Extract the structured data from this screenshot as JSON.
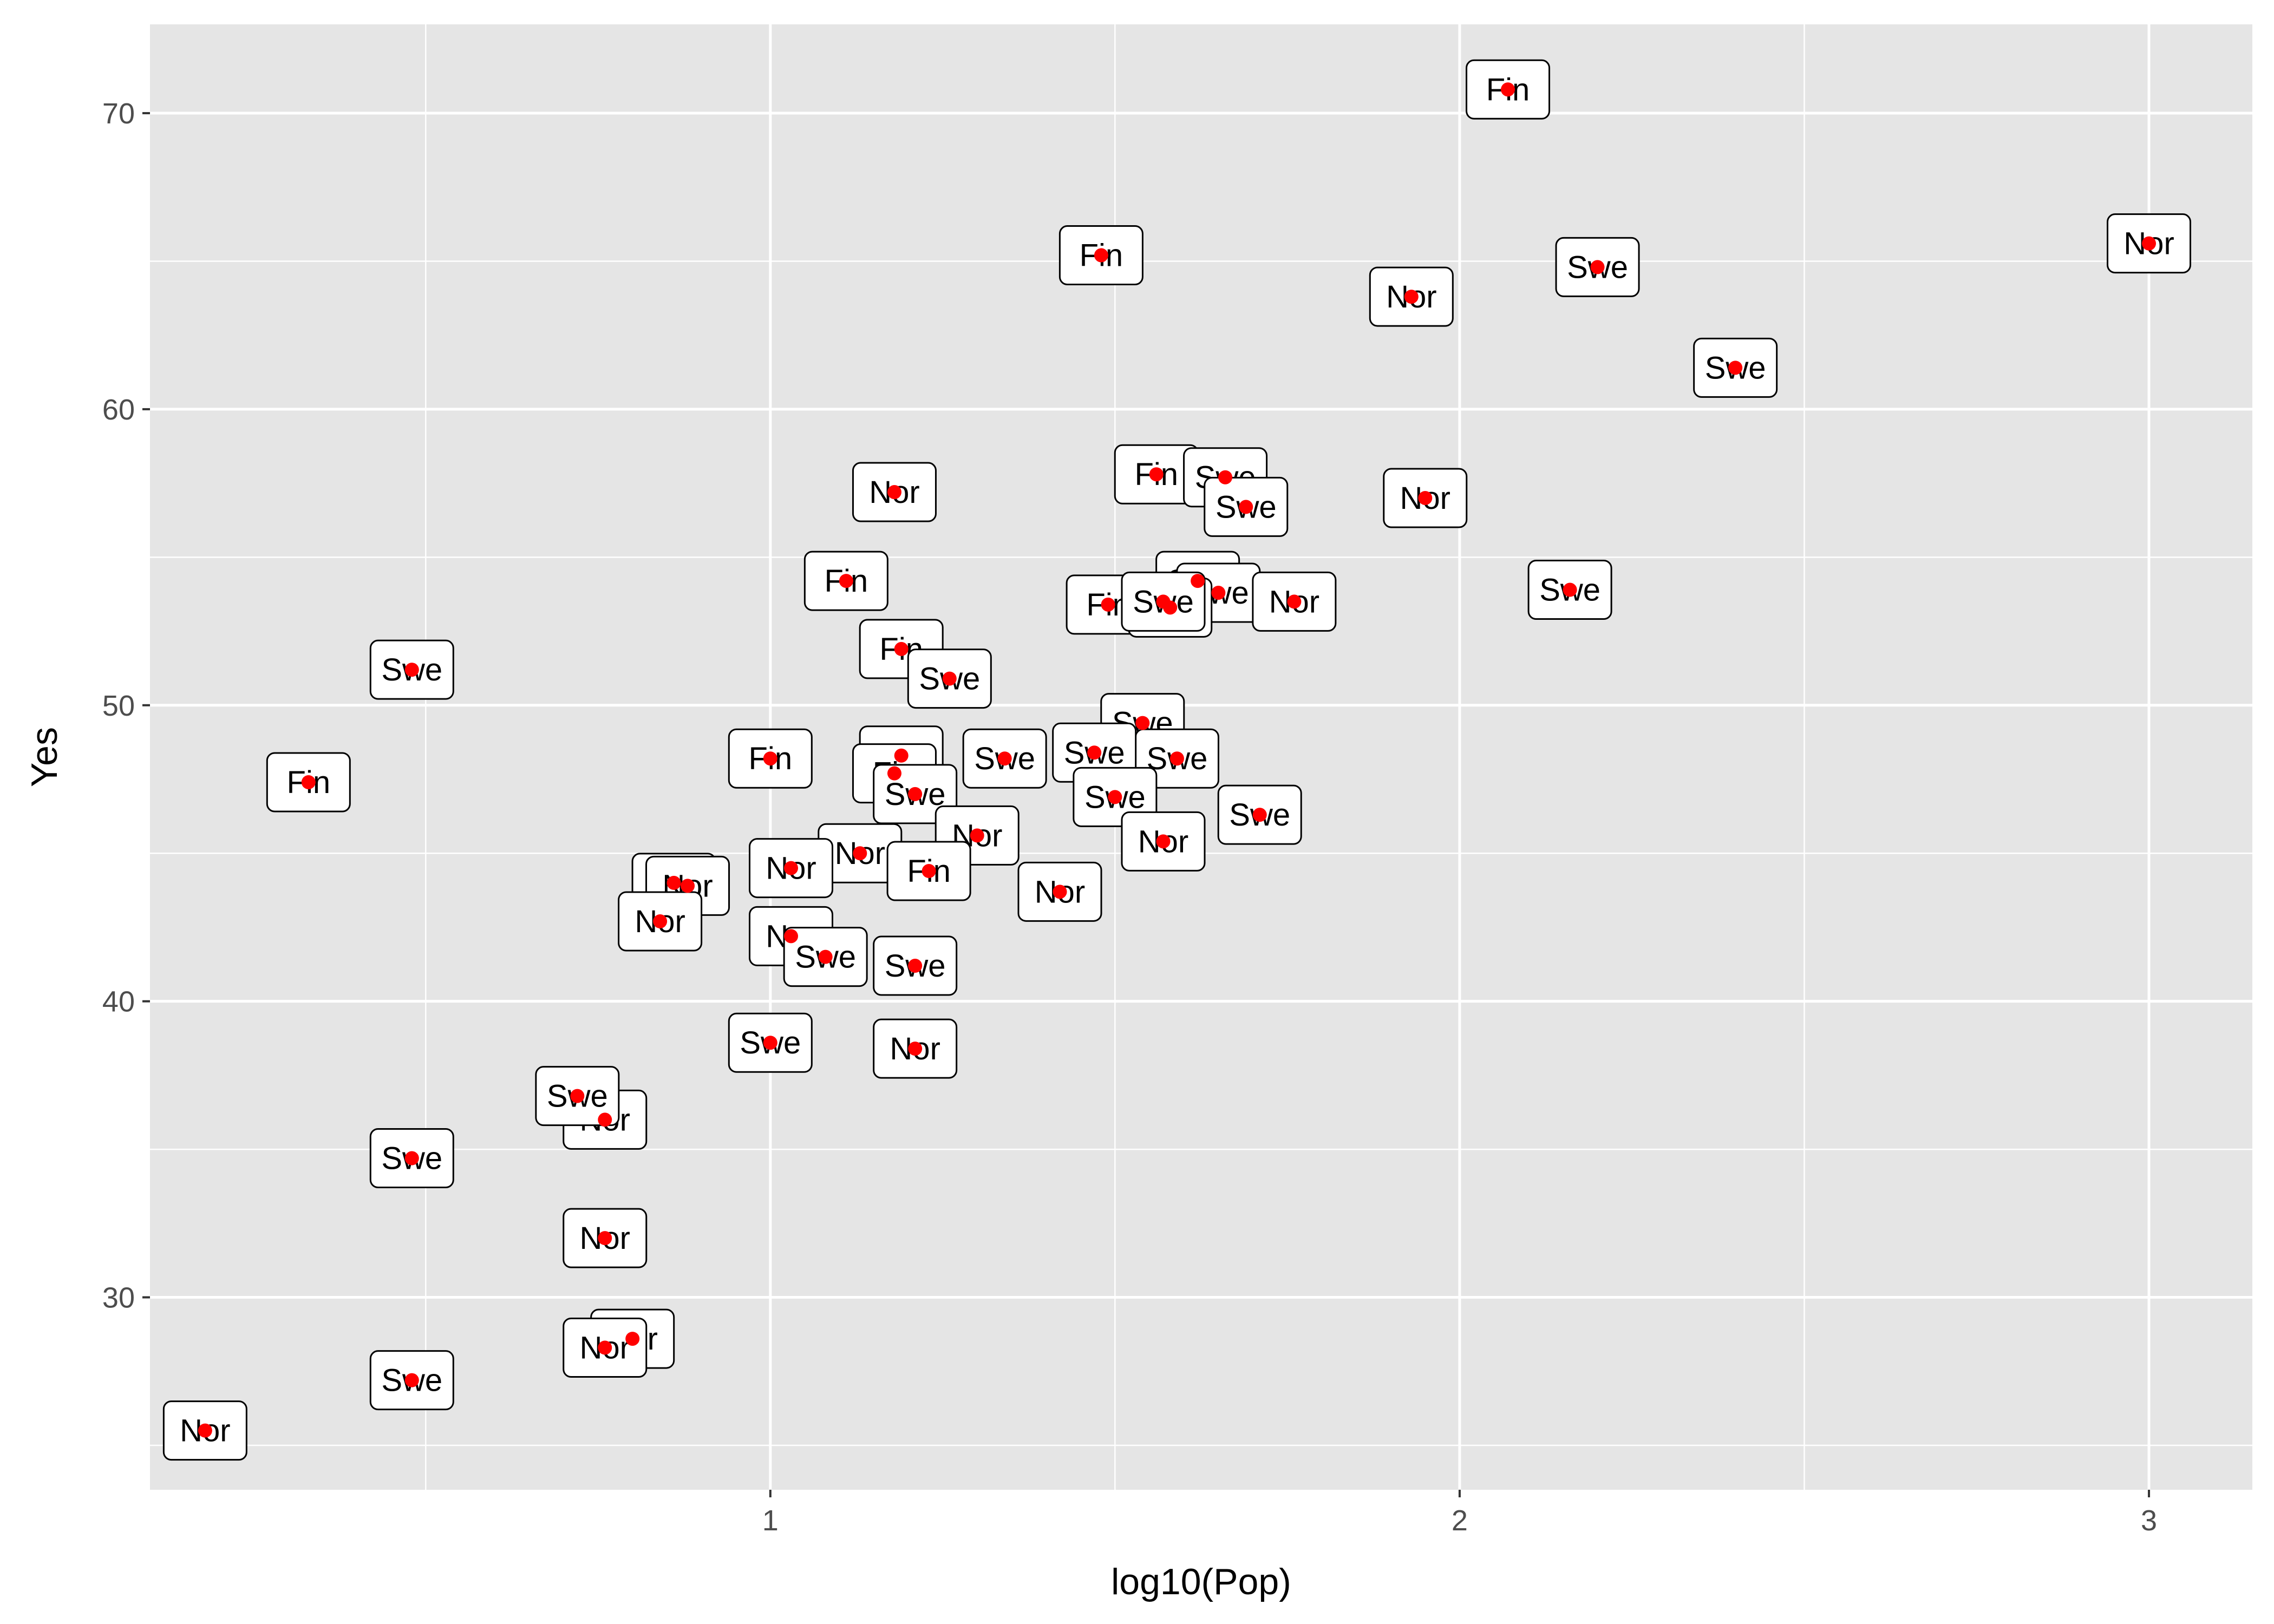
{
  "chart_data": {
    "type": "scatter",
    "title": "",
    "xlabel": "log10(Pop)",
    "ylabel": "Yes",
    "xlim": [
      0.1,
      3.15
    ],
    "ylim": [
      23.5,
      73.0
    ],
    "x_ticks": [
      1,
      2,
      3
    ],
    "x_tick_labels": [
      "1",
      "2",
      "3"
    ],
    "y_ticks": [
      30,
      40,
      50,
      60,
      70
    ],
    "y_tick_labels": [
      "30",
      "40",
      "50",
      "60",
      "70"
    ],
    "grid": true,
    "legend": "none",
    "point_color": "#ff0000",
    "panel_color": "#e5e5e5",
    "points": [
      {
        "x": 2.07,
        "y": 70.8,
        "label": "Fin"
      },
      {
        "x": 3.0,
        "y": 65.6,
        "label": "Nor"
      },
      {
        "x": 1.48,
        "y": 65.2,
        "label": "Fin"
      },
      {
        "x": 2.2,
        "y": 64.8,
        "label": "Swe"
      },
      {
        "x": 1.93,
        "y": 63.8,
        "label": "Nor"
      },
      {
        "x": 2.4,
        "y": 61.4,
        "label": "Swe"
      },
      {
        "x": 1.56,
        "y": 57.8,
        "label": "Fin"
      },
      {
        "x": 1.66,
        "y": 57.7,
        "label": "Swe"
      },
      {
        "x": 1.69,
        "y": 56.7,
        "label": "Swe"
      },
      {
        "x": 1.18,
        "y": 57.2,
        "label": "Nor"
      },
      {
        "x": 1.95,
        "y": 57.0,
        "label": "Nor"
      },
      {
        "x": 1.11,
        "y": 54.2,
        "label": "Fin"
      },
      {
        "x": 1.62,
        "y": 54.2,
        "label": "Swe"
      },
      {
        "x": 1.65,
        "y": 53.8,
        "label": "Swe"
      },
      {
        "x": 2.16,
        "y": 53.9,
        "label": "Swe"
      },
      {
        "x": 1.76,
        "y": 53.5,
        "label": "Nor"
      },
      {
        "x": 1.49,
        "y": 53.4,
        "label": "Fin"
      },
      {
        "x": 1.58,
        "y": 53.3,
        "label": "Swe"
      },
      {
        "x": 1.57,
        "y": 53.5,
        "label": "Swe"
      },
      {
        "x": 1.19,
        "y": 51.9,
        "label": "Fin"
      },
      {
        "x": 1.26,
        "y": 50.9,
        "label": "Swe"
      },
      {
        "x": 0.48,
        "y": 51.2,
        "label": "Swe"
      },
      {
        "x": 1.54,
        "y": 49.4,
        "label": "Swe"
      },
      {
        "x": 0.33,
        "y": 47.4,
        "label": "Fin"
      },
      {
        "x": 1.0,
        "y": 48.2,
        "label": "Fin"
      },
      {
        "x": 1.19,
        "y": 48.3,
        "label": "Fin"
      },
      {
        "x": 1.18,
        "y": 47.7,
        "label": "Fin"
      },
      {
        "x": 1.34,
        "y": 48.2,
        "label": "Swe"
      },
      {
        "x": 1.59,
        "y": 48.2,
        "label": "Swe"
      },
      {
        "x": 1.47,
        "y": 48.4,
        "label": "Swe"
      },
      {
        "x": 1.21,
        "y": 47.0,
        "label": "Swe"
      },
      {
        "x": 1.5,
        "y": 46.9,
        "label": "Swe"
      },
      {
        "x": 1.71,
        "y": 46.3,
        "label": "Swe"
      },
      {
        "x": 1.3,
        "y": 45.6,
        "label": "Nor"
      },
      {
        "x": 1.57,
        "y": 45.4,
        "label": "Nor"
      },
      {
        "x": 1.13,
        "y": 45.0,
        "label": "Nor"
      },
      {
        "x": 1.23,
        "y": 44.4,
        "label": "Fin"
      },
      {
        "x": 1.42,
        "y": 43.7,
        "label": "Nor"
      },
      {
        "x": 1.03,
        "y": 44.5,
        "label": "Nor"
      },
      {
        "x": 0.86,
        "y": 44.0,
        "label": "Nor"
      },
      {
        "x": 0.88,
        "y": 43.9,
        "label": "Nor"
      },
      {
        "x": 0.84,
        "y": 42.7,
        "label": "Nor"
      },
      {
        "x": 1.03,
        "y": 42.2,
        "label": "Nor"
      },
      {
        "x": 1.08,
        "y": 41.5,
        "label": "Swe"
      },
      {
        "x": 1.21,
        "y": 41.2,
        "label": "Swe"
      },
      {
        "x": 1.0,
        "y": 38.6,
        "label": "Swe"
      },
      {
        "x": 1.21,
        "y": 38.4,
        "label": "Nor"
      },
      {
        "x": 0.76,
        "y": 36.0,
        "label": "Nor"
      },
      {
        "x": 0.72,
        "y": 36.8,
        "label": "Swe"
      },
      {
        "x": 0.48,
        "y": 34.7,
        "label": "Swe"
      },
      {
        "x": 0.76,
        "y": 32.0,
        "label": "Nor"
      },
      {
        "x": 0.8,
        "y": 28.6,
        "label": "Nor"
      },
      {
        "x": 0.76,
        "y": 28.3,
        "label": "Nor"
      },
      {
        "x": 0.48,
        "y": 27.2,
        "label": "Swe"
      },
      {
        "x": 0.18,
        "y": 25.5,
        "label": "Nor"
      }
    ]
  }
}
